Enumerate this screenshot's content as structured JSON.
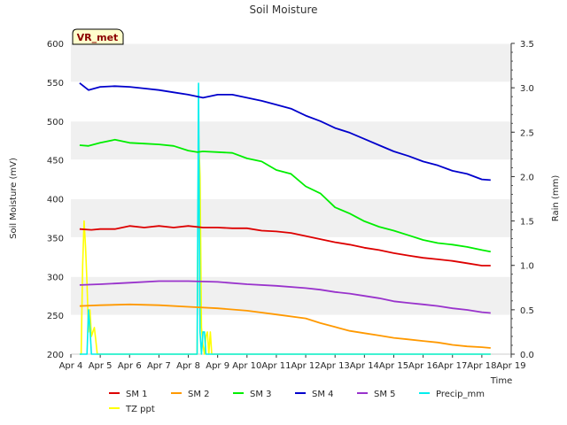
{
  "chart_data": {
    "type": "line",
    "title": "Soil Moisture",
    "station_tag": "VR_met",
    "xlabel": "Time",
    "ylabel_left": "Soil Moisture (mV)",
    "ylabel_right": "Rain (mm)",
    "x_tick_labels": [
      "Apr 4",
      "Apr 5",
      "Apr 6",
      "Apr 7",
      "Apr 8",
      "Apr 9",
      "Apr 10",
      "Apr 11",
      "Apr 12",
      "Apr 13",
      "Apr 14",
      "Apr 15",
      "Apr 16",
      "Apr 17",
      "Apr 18",
      "Apr 19"
    ],
    "xlim_days": [
      4,
      19
    ],
    "ylim_left": [
      200,
      600
    ],
    "yticks_left": [
      200,
      250,
      300,
      350,
      400,
      450,
      500,
      550,
      600
    ],
    "ylim_right": [
      0,
      3.5
    ],
    "yticks_right": [
      0.0,
      0.5,
      1.0,
      1.5,
      2.0,
      2.5,
      3.0,
      3.5
    ],
    "grid": "horizontal bands",
    "legend_position": "bottom",
    "series": [
      {
        "name": "SM 1",
        "axis": "left",
        "color": "#dd0000",
        "x": [
          4.3,
          4.7,
          5.0,
          5.5,
          6.0,
          6.5,
          7.0,
          7.5,
          8.0,
          8.5,
          9.0,
          9.5,
          10.0,
          10.5,
          11.0,
          11.5,
          12.0,
          12.5,
          13.0,
          13.5,
          14.0,
          14.5,
          15.0,
          15.5,
          16.0,
          16.5,
          17.0,
          17.5,
          18.0,
          18.3
        ],
        "y": [
          361,
          360,
          361,
          361,
          365,
          363,
          365,
          363,
          365,
          363,
          363,
          362,
          362,
          359,
          358,
          356,
          352,
          348,
          344,
          341,
          337,
          334,
          330,
          327,
          324,
          322,
          320,
          317,
          314,
          314
        ]
      },
      {
        "name": "SM 2",
        "axis": "left",
        "color": "#ff9900",
        "x": [
          4.3,
          5.0,
          6.0,
          7.0,
          8.0,
          9.0,
          10.0,
          11.0,
          12.0,
          12.5,
          13.0,
          13.5,
          14.0,
          14.5,
          15.0,
          15.5,
          16.0,
          16.5,
          17.0,
          17.5,
          18.0,
          18.3
        ],
        "y": [
          262,
          263,
          264,
          263,
          261,
          259,
          256,
          251,
          246,
          240,
          235,
          230,
          227,
          224,
          221,
          219,
          217,
          215,
          212,
          210,
          209,
          208
        ]
      },
      {
        "name": "SM 3",
        "axis": "left",
        "color": "#00ee00",
        "x": [
          4.3,
          4.6,
          5.0,
          5.5,
          6.0,
          6.5,
          7.0,
          7.5,
          8.0,
          8.3,
          8.5,
          9.0,
          9.5,
          10.0,
          10.5,
          11.0,
          11.5,
          12.0,
          12.5,
          13.0,
          13.5,
          14.0,
          14.5,
          15.0,
          15.5,
          16.0,
          16.5,
          17.0,
          17.5,
          18.0,
          18.3
        ],
        "y": [
          469,
          468,
          472,
          476,
          472,
          471,
          470,
          468,
          462,
          460,
          461,
          460,
          459,
          452,
          448,
          437,
          432,
          416,
          407,
          389,
          381,
          371,
          364,
          359,
          353,
          347,
          343,
          341,
          338,
          334,
          332
        ]
      },
      {
        "name": "SM 4",
        "axis": "left",
        "color": "#0000cc",
        "x": [
          4.3,
          4.6,
          5.0,
          5.5,
          6.0,
          6.5,
          7.0,
          7.5,
          8.0,
          8.5,
          9.0,
          9.5,
          10.0,
          10.5,
          11.0,
          11.5,
          12.0,
          12.5,
          13.0,
          13.5,
          14.0,
          14.5,
          15.0,
          15.5,
          16.0,
          16.5,
          17.0,
          17.5,
          18.0,
          18.3
        ],
        "y": [
          549,
          540,
          544,
          545,
          544,
          542,
          540,
          537,
          534,
          530,
          534,
          534,
          530,
          526,
          521,
          516,
          507,
          500,
          491,
          485,
          477,
          469,
          461,
          455,
          448,
          443,
          436,
          432,
          425,
          424
        ]
      },
      {
        "name": "SM 5",
        "axis": "left",
        "color": "#9933cc",
        "x": [
          4.3,
          5.0,
          6.0,
          7.0,
          8.0,
          9.0,
          10.0,
          11.0,
          12.0,
          12.5,
          13.0,
          13.5,
          14.0,
          14.5,
          15.0,
          15.5,
          16.0,
          16.5,
          17.0,
          17.5,
          18.0,
          18.3
        ],
        "y": [
          289,
          290,
          292,
          294,
          294,
          293,
          290,
          288,
          285,
          283,
          280,
          278,
          275,
          272,
          268,
          266,
          264,
          262,
          259,
          257,
          254,
          253
        ]
      },
      {
        "name": "Precip_mm",
        "axis": "right",
        "color": "#00eeee",
        "x": [
          4.55,
          4.6,
          4.65,
          4.7,
          8.3,
          8.35,
          8.4,
          8.45,
          8.5,
          8.55,
          8.6
        ],
        "y": [
          0.0,
          0.5,
          0.3,
          0.0,
          0.0,
          3.05,
          0.25,
          0.0,
          0.25,
          0.25,
          0.0
        ]
      },
      {
        "name": "TZ ppt",
        "axis": "right",
        "color": "#ffff00",
        "x": [
          4.35,
          4.4,
          4.45,
          4.5,
          4.55,
          4.6,
          4.65,
          4.7,
          4.75,
          4.8,
          4.85,
          4.9,
          8.3,
          8.35,
          8.4,
          8.45,
          8.5,
          8.55,
          8.6,
          8.65,
          8.7,
          8.75,
          8.8
        ],
        "y": [
          0.0,
          1.0,
          1.5,
          1.2,
          0.8,
          0.25,
          0.5,
          0.2,
          0.25,
          0.3,
          0.15,
          0.0,
          0.0,
          2.5,
          2.0,
          0.3,
          0.1,
          0.0,
          0.2,
          0.25,
          0.0,
          0.25,
          0.0
        ]
      }
    ]
  }
}
